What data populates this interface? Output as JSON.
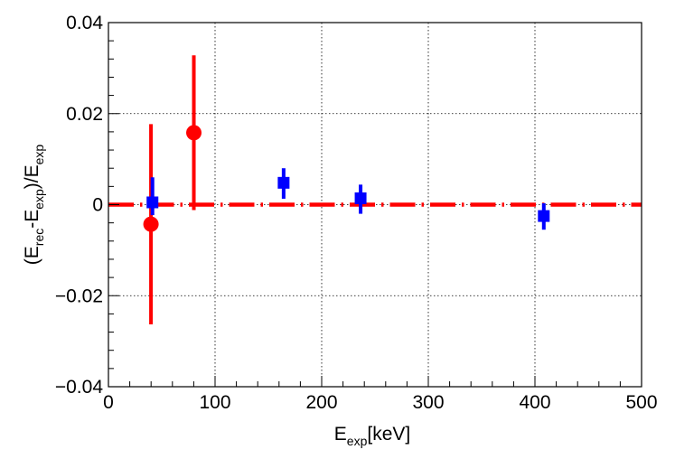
{
  "chart_data": {
    "type": "scatter",
    "title": "",
    "xlabel": {
      "main": "E",
      "sub": "exp",
      "unit": "[keV]"
    },
    "ylabel": {
      "open": "(E",
      "sub1": "rec",
      "mid": "-E",
      "sub2": "exp",
      "close": ")/E",
      "sub3": "exp"
    },
    "xlim": [
      0,
      500
    ],
    "ylim": [
      -0.04,
      0.04
    ],
    "x_ticks": [
      0,
      100,
      200,
      300,
      400,
      500
    ],
    "x_tick_labels": [
      "0",
      "100",
      "200",
      "300",
      "400",
      "500"
    ],
    "y_ticks": [
      -0.04,
      -0.02,
      0,
      0.02,
      0.04
    ],
    "y_tick_labels": [
      "−0.04",
      "−0.02",
      "0",
      "0.02",
      "0.04"
    ],
    "grid": true,
    "series": [
      {
        "name": "red",
        "color": "#ff0000",
        "marker": "circle",
        "points": [
          {
            "x": 39.9,
            "y": -0.0043,
            "yerr_low": 0.022,
            "yerr_high": 0.022
          },
          {
            "x": 80.1,
            "y": 0.0158,
            "yerr_low": 0.017,
            "yerr_high": 0.017
          }
        ]
      },
      {
        "name": "blue",
        "color": "#0000ff",
        "marker": "square",
        "points": [
          {
            "x": 41.3,
            "y": 0.0005,
            "yerr_low": 0.0028,
            "yerr_high": 0.0055,
            "xerr": 4
          },
          {
            "x": 164.3,
            "y": 0.0048,
            "yerr_low": 0.0035,
            "yerr_high": 0.0032,
            "xerr": 4
          },
          {
            "x": 236.5,
            "y": 0.0014,
            "yerr_low": 0.0034,
            "yerr_high": 0.003,
            "xerr": 4
          },
          {
            "x": 408.3,
            "y": -0.0025,
            "yerr_low": 0.003,
            "yerr_high": 0.0028,
            "xerr": 4
          }
        ]
      }
    ],
    "reference_line": {
      "y": 0,
      "x_from": 0,
      "x_to": 500,
      "color": "#ff0000",
      "style": "dash-dot"
    }
  }
}
